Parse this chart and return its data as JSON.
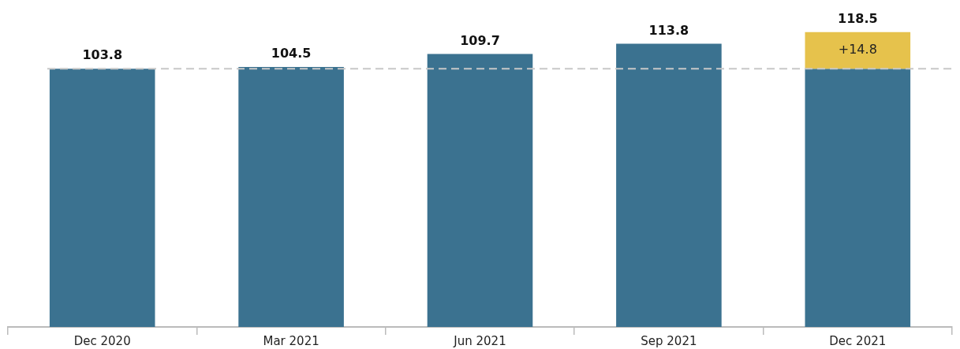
{
  "chart_data": {
    "type": "bar",
    "stacked": true,
    "categories": [
      "Dec 2020",
      "Mar 2021",
      "Jun 2021",
      "Sep 2021",
      "Dec 2021"
    ],
    "series": [
      {
        "color": "#3b7290",
        "values": [
          103.8,
          104.5,
          109.7,
          113.8,
          103.7
        ],
        "value_labels": [
          "103.8",
          "104.5",
          "109.7",
          "113.8",
          null
        ]
      },
      {
        "color": "#e6c24c",
        "values": [
          null,
          null,
          null,
          null,
          14.8
        ],
        "value_labels": [
          null,
          null,
          null,
          null,
          "+14.8"
        ]
      }
    ],
    "totals": [
      null,
      null,
      null,
      null,
      "118.5"
    ],
    "ref_lines": [
      {
        "axis": "y",
        "value": 103.8,
        "color": "#c8c8c8",
        "line_style": "dashed"
      }
    ],
    "grid": false,
    "legend": false
  }
}
